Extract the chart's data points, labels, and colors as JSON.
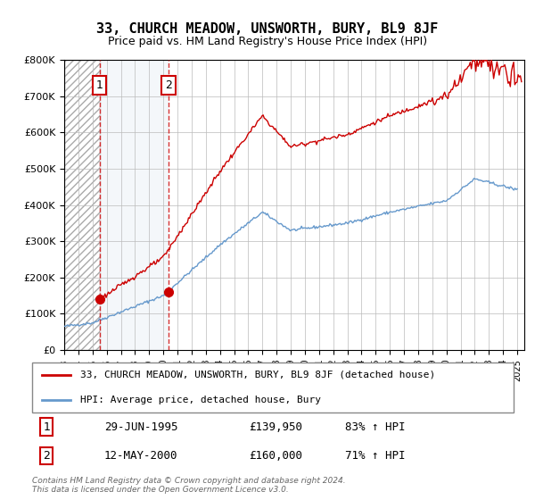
{
  "title": "33, CHURCH MEADOW, UNSWORTH, BURY, BL9 8JF",
  "subtitle": "Price paid vs. HM Land Registry's House Price Index (HPI)",
  "legend_line1": "33, CHURCH MEADOW, UNSWORTH, BURY, BL9 8JF (detached house)",
  "legend_line2": "HPI: Average price, detached house, Bury",
  "sale1_date": "29-JUN-1995",
  "sale1_price": 139950,
  "sale1_pct": "83% ↑ HPI",
  "sale2_date": "12-MAY-2000",
  "sale2_price": 160000,
  "sale2_pct": "71% ↑ HPI",
  "copyright": "Contains HM Land Registry data © Crown copyright and database right 2024.\nThis data is licensed under the Open Government Licence v3.0.",
  "sale1_x": 1995.49,
  "sale2_x": 2000.36,
  "ylim": [
    0,
    800000
  ],
  "xlim_start": 1993.0,
  "xlim_end": 2025.5,
  "red_color": "#cc0000",
  "blue_color": "#6699cc",
  "hatch_color": "#cccccc",
  "bg_color": "#f0f4f8"
}
